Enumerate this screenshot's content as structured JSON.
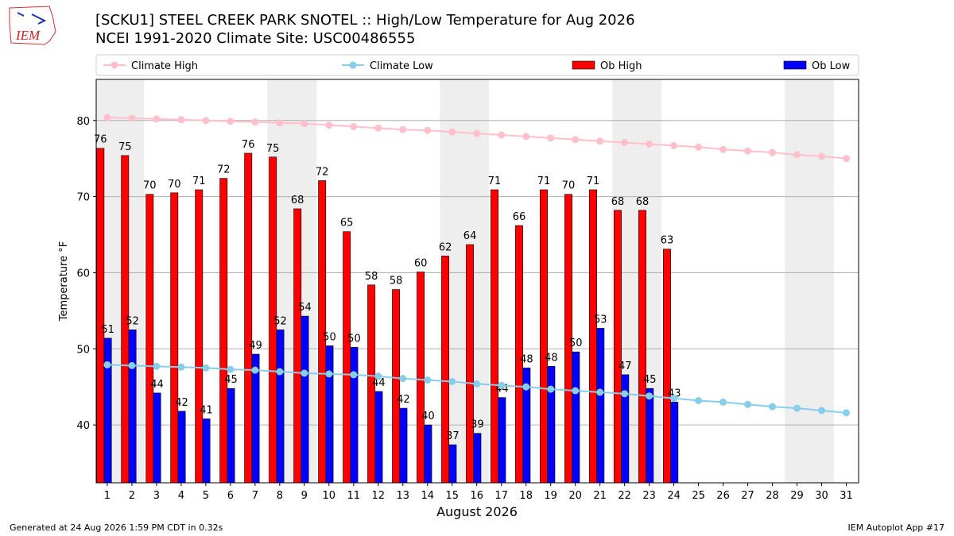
{
  "logo_text": "IEM",
  "footer_left": "Generated at 24 Aug 2026 1:59 PM CDT in 0.32s",
  "footer_right": "IEM Autoplot App #17",
  "chart_data": {
    "type": "bar",
    "title": "[SCKU1] STEEL CREEK PARK SNOTEL :: High/Low Temperature for Aug 2026",
    "subtitle": "NCEI 1991-2020 Climate Site: USC00486555",
    "xlabel": "August 2026",
    "ylabel": "Temperature °F",
    "x": [
      1,
      2,
      3,
      4,
      5,
      6,
      7,
      8,
      9,
      10,
      11,
      12,
      13,
      14,
      15,
      16,
      17,
      18,
      19,
      20,
      21,
      22,
      23,
      24,
      25,
      26,
      27,
      28,
      29,
      30,
      31
    ],
    "xlim": [
      0.55,
      31.5
    ],
    "xticks": [
      1,
      2,
      3,
      4,
      5,
      6,
      7,
      8,
      9,
      10,
      11,
      12,
      13,
      14,
      15,
      16,
      17,
      18,
      19,
      20,
      21,
      22,
      23,
      24,
      25,
      26,
      27,
      28,
      29,
      30,
      31
    ],
    "ylim": [
      32.4,
      85.4
    ],
    "yticks": [
      40,
      50,
      60,
      70,
      80
    ],
    "grid": true,
    "shaded_x_ranges": [
      [
        0.55,
        2.5
      ],
      [
        7.5,
        9.5
      ],
      [
        14.5,
        16.5
      ],
      [
        21.5,
        23.5
      ],
      [
        28.5,
        30.5
      ]
    ],
    "series": [
      {
        "name": "Climate High",
        "type": "line",
        "color": "#ffc0cb",
        "values": [
          80.4,
          80.3,
          80.2,
          80.1,
          80.0,
          79.9,
          79.8,
          79.7,
          79.6,
          79.4,
          79.2,
          79.0,
          78.8,
          78.7,
          78.5,
          78.3,
          78.1,
          77.9,
          77.7,
          77.5,
          77.3,
          77.1,
          76.9,
          76.7,
          76.5,
          76.2,
          76.0,
          75.8,
          75.5,
          75.3,
          75.0
        ]
      },
      {
        "name": "Climate Low",
        "type": "line",
        "color": "#87ceeb",
        "values": [
          47.9,
          47.8,
          47.7,
          47.6,
          47.5,
          47.3,
          47.2,
          47.0,
          46.8,
          46.7,
          46.6,
          46.4,
          46.1,
          45.9,
          45.7,
          45.4,
          45.2,
          45.0,
          44.7,
          44.5,
          44.3,
          44.1,
          43.8,
          43.5,
          43.2,
          43.0,
          42.7,
          42.4,
          42.2,
          41.9,
          41.6
        ]
      },
      {
        "name": "Ob High",
        "type": "bar",
        "color": "#ff0000",
        "values": [
          76.35,
          75.4,
          70.3,
          70.5,
          70.9,
          72.4,
          75.7,
          75.2,
          68.4,
          72.1,
          65.4,
          58.4,
          57.8,
          60.1,
          62.2,
          63.7,
          70.9,
          66.2,
          70.9,
          70.3,
          70.9,
          68.2,
          68.2,
          63.1,
          null,
          null,
          null,
          null,
          null,
          null,
          null
        ],
        "value_labels": [
          "76",
          "75",
          "70",
          "70",
          "71",
          "72",
          "76",
          "75",
          "68",
          "72",
          "65",
          "58",
          "58",
          "60",
          "62",
          "64",
          "71",
          "66",
          "71",
          "70",
          "71",
          "68",
          "68",
          "63",
          null,
          null,
          null,
          null,
          null,
          null,
          null
        ]
      },
      {
        "name": "Ob Low",
        "type": "bar",
        "color": "#0000ff",
        "values": [
          51.4,
          52.5,
          44.2,
          41.8,
          40.8,
          44.8,
          49.3,
          52.5,
          54.3,
          50.4,
          50.2,
          44.4,
          42.2,
          40.0,
          37.4,
          38.9,
          43.6,
          47.5,
          47.7,
          49.6,
          52.7,
          46.6,
          44.8,
          43.0,
          null,
          null,
          null,
          null,
          null,
          null,
          null
        ],
        "value_labels": [
          "51",
          "52",
          "44",
          "42",
          "41",
          "45",
          "49",
          "52",
          "54",
          "50",
          "50",
          "44",
          "42",
          "40",
          "37",
          "39",
          "44",
          "48",
          "48",
          "50",
          "53",
          "47",
          "45",
          "43",
          null,
          null,
          null,
          null,
          null,
          null,
          null
        ]
      }
    ]
  }
}
